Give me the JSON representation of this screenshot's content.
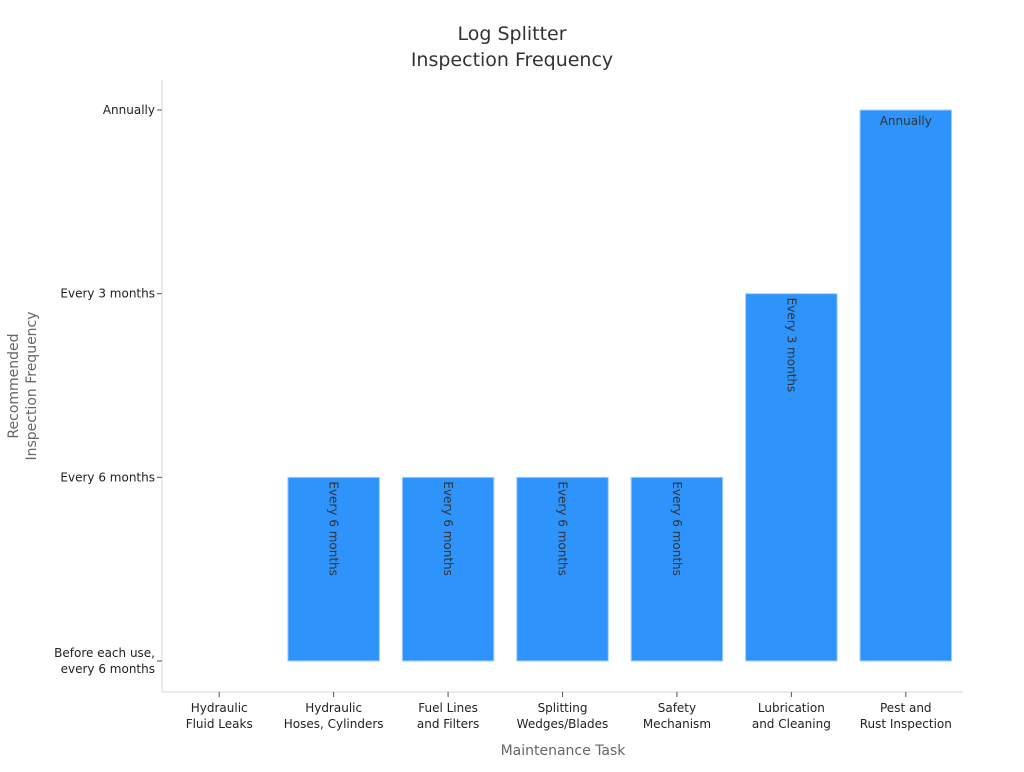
{
  "chart_data": {
    "type": "bar",
    "title_lines": [
      "Log Splitter",
      "Inspection Frequency"
    ],
    "xlabel": "Maintenance Task",
    "ylabel_lines": [
      "Recommended",
      "Inspection Frequency"
    ],
    "categories": [
      [
        "Hydraulic",
        "Fluid Leaks"
      ],
      [
        "Hydraulic",
        "Hoses, Cylinders"
      ],
      [
        "Fuel Lines",
        "and Filters"
      ],
      [
        "Splitting",
        "Wedges/Blades"
      ],
      [
        "Safety",
        "Mechanism"
      ],
      [
        "Lubrication",
        "and Cleaning"
      ],
      [
        "Pest and",
        "Rust Inspection"
      ]
    ],
    "y_levels": [
      [
        "Before each use,",
        "every 6 months"
      ],
      [
        "Every 6 months"
      ],
      [
        "Every 3 months"
      ],
      [
        "Annually"
      ]
    ],
    "values": [
      0,
      1,
      1,
      1,
      1,
      2,
      3
    ],
    "data_labels": [
      "",
      "Every 6 months",
      "Every 6 months",
      "Every 6 months",
      "Every 6 months",
      "Every 3 months",
      "Annually"
    ],
    "ylim": [
      0,
      3
    ],
    "grid": false,
    "bar_color": "#2e93fa",
    "bar_edge_color": "#a8d0fb"
  }
}
